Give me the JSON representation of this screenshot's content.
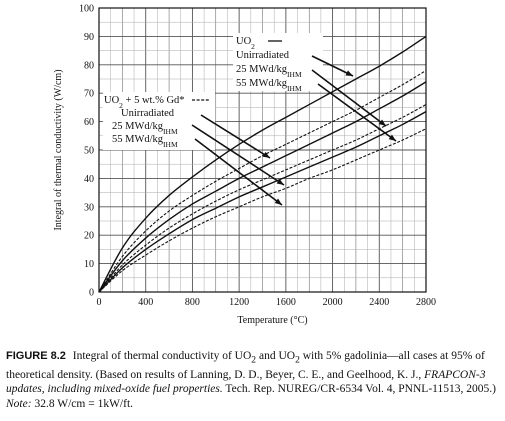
{
  "chart_data": {
    "type": "line",
    "xlabel": "Temperature (°C)",
    "ylabel": "Integral of thermal conductivity (W/cm)",
    "xlim": [
      0,
      2800
    ],
    "ylim": [
      0,
      100
    ],
    "x_ticks": [
      "0",
      "400",
      "800",
      "1200",
      "1600",
      "2000",
      "2400",
      "2800"
    ],
    "y_ticks": [
      "0",
      "10",
      "20",
      "30",
      "40",
      "50",
      "60",
      "70",
      "80",
      "90",
      "100"
    ],
    "grid": true,
    "series": [
      {
        "key": "uo2_unirr",
        "group": "UO2",
        "line": "solid",
        "x": [
          0,
          200,
          400,
          600,
          800,
          1000,
          1200,
          1400,
          1600,
          1800,
          2000,
          2200,
          2400,
          2600,
          2800
        ],
        "y": [
          0,
          15.5,
          26,
          34,
          40.5,
          46.5,
          52,
          57,
          61.5,
          66,
          70.5,
          75,
          79.5,
          84.5,
          90
        ]
      },
      {
        "key": "uo2_25",
        "group": "UO2",
        "line": "solid",
        "x": [
          0,
          200,
          400,
          600,
          800,
          1000,
          1200,
          1400,
          1600,
          1800,
          2000,
          2200,
          2400,
          2600,
          2800
        ],
        "y": [
          0,
          11,
          19,
          25.5,
          31,
          35.5,
          40,
          44,
          48,
          52,
          56,
          60,
          64.5,
          69,
          74
        ]
      },
      {
        "key": "uo2_55",
        "group": "UO2",
        "line": "solid",
        "x": [
          0,
          200,
          400,
          600,
          800,
          1000,
          1200,
          1400,
          1600,
          1800,
          2000,
          2200,
          2400,
          2600,
          2800
        ],
        "y": [
          0,
          8.5,
          15,
          20.5,
          25.5,
          29.5,
          33.5,
          37,
          40.5,
          44,
          47.5,
          51,
          55,
          59,
          63.5
        ]
      },
      {
        "key": "gd_unirr",
        "group": "Gd",
        "line": "dashed",
        "x": [
          0,
          200,
          400,
          600,
          800,
          1000,
          1200,
          1400,
          1600,
          1800,
          2000,
          2200,
          2400,
          2600,
          2800
        ],
        "y": [
          0,
          12.5,
          21.5,
          28.5,
          34,
          39,
          43.5,
          48,
          52,
          56,
          60,
          64,
          68.5,
          73,
          78
        ]
      },
      {
        "key": "gd_25",
        "group": "Gd",
        "line": "dashed",
        "x": [
          0,
          200,
          400,
          600,
          800,
          1000,
          1200,
          1400,
          1600,
          1800,
          2000,
          2200,
          2400,
          2600,
          2800
        ],
        "y": [
          0,
          9.5,
          16.5,
          22.5,
          27.5,
          32,
          36,
          39.5,
          43,
          46.5,
          50,
          53.5,
          57.5,
          61.5,
          66
        ]
      },
      {
        "key": "gd_55",
        "group": "Gd",
        "line": "dashed",
        "x": [
          0,
          200,
          400,
          600,
          800,
          1000,
          1200,
          1400,
          1600,
          1800,
          2000,
          2200,
          2400,
          2600,
          2800
        ],
        "y": [
          0,
          7.5,
          13,
          18,
          22.5,
          26.5,
          30,
          33.5,
          36.5,
          40,
          43,
          46.5,
          50,
          53.5,
          57.5
        ]
      }
    ],
    "legend": {
      "uo2": {
        "title_main": "UO",
        "title_sub": "2",
        "items": [
          "Unirradiated",
          "25 MWd/kg",
          "55 MWd/kg"
        ],
        "item_sub": "IHM"
      },
      "gd": {
        "title_main": "UO",
        "title_sub": "2",
        "title_rest": " + 5 wt.% Gd*",
        "items": [
          "Unirradiated",
          "25 MWd/kg",
          "55 MWd/kg"
        ],
        "item_sub": "IHM"
      }
    }
  },
  "caption": {
    "fig_label": "FIGURE 8.2",
    "text_1": "Integral of thermal conductivity of UO",
    "sub_1": "2",
    "text_2": " and UO",
    "sub_2": "2",
    "text_3": " with 5% gadolinia—all cases at 95% of theoretical density. (Based on results of Lanning, D. D., Beyer, C. E., and Geelhood, K. J., ",
    "title_italic": "FRAPCON-3 updates, including mixed-oxide fuel properties.",
    "text_4": " Tech. Rep. NUREG/CR-6534 Vol. 4, PNNL-11513, 2005.) ",
    "note_italic": "Note:",
    "text_5": " 32.8 W/cm = 1kW/ft."
  }
}
